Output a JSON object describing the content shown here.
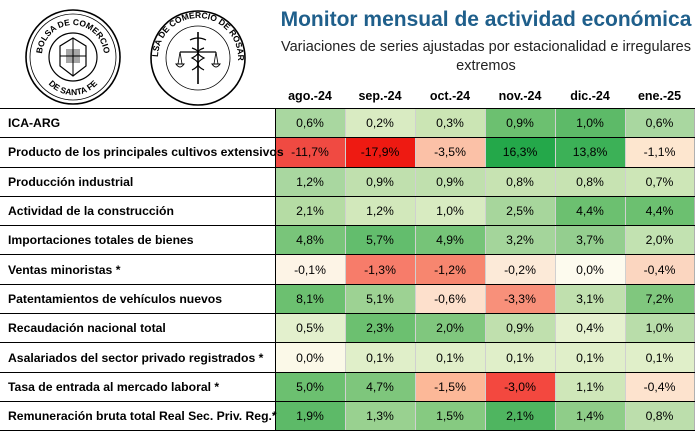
{
  "title": "Monitor mensual de actividad económica",
  "subtitle": "Variaciones de series ajustadas por estacionalidad e irregulares extremos",
  "logos": {
    "left_text_top": "BOLSA DE COMERCIO",
    "left_text_bottom": "DE SANTA FE",
    "right_text": "BOLSA DE COMERCIO DE ROSARIO"
  },
  "months": [
    "ago.-24",
    "sep.-24",
    "oct.-24",
    "nov.-24",
    "dic.-24",
    "ene.-25"
  ],
  "rows": [
    {
      "label": "ICA-ARG",
      "values": [
        "0,6%",
        "0,2%",
        "0,3%",
        "0,9%",
        "1,0%",
        "0,6%"
      ],
      "colors": [
        "#a9d7a0",
        "#d9ebc2",
        "#cbe5b4",
        "#6cc070",
        "#5dba68",
        "#a9d7a0"
      ]
    },
    {
      "label": "Producto de los principales cultivos extensivos",
      "values": [
        "-11,7%",
        "-17,9%",
        "-3,5%",
        "16,3%",
        "13,8%",
        "-1,1%"
      ],
      "colors": [
        "#f04a42",
        "#ee1a12",
        "#fbc1a7",
        "#24a84a",
        "#3cb157",
        "#fde6cf"
      ]
    },
    {
      "label": "Producción industrial",
      "values": [
        "1,2%",
        "0,9%",
        "0,9%",
        "0,8%",
        "0,8%",
        "0,7%"
      ],
      "colors": [
        "#a9d7a0",
        "#c0e0ae",
        "#c0e0ae",
        "#c7e3b2",
        "#c7e3b2",
        "#cde6b7"
      ]
    },
    {
      "label": "Actividad de la construcción",
      "values": [
        "2,1%",
        "1,2%",
        "1,0%",
        "2,5%",
        "4,4%",
        "4,4%"
      ],
      "colors": [
        "#b5dca4",
        "#d2e8bb",
        "#d8ebc1",
        "#a7d69c",
        "#6cc070",
        "#6cc070"
      ]
    },
    {
      "label": "Importaciones totales de bienes",
      "values": [
        "4,8%",
        "5,7%",
        "4,9%",
        "3,2%",
        "3,7%",
        "2,0%"
      ],
      "colors": [
        "#79c57a",
        "#63bd6d",
        "#76c478",
        "#a4d59b",
        "#94ce8f",
        "#c2e2b1"
      ]
    },
    {
      "label": "Ventas minoristas *",
      "values": [
        "-0,1%",
        "-1,3%",
        "-1,2%",
        "-0,2%",
        "0,0%",
        "-0,4%"
      ],
      "colors": [
        "#fdf4e6",
        "#f77c6a",
        "#f7866f",
        "#fcead8",
        "#fdfbee",
        "#fbd6c0"
      ]
    },
    {
      "label": "Patentamientos de vehículos nuevos",
      "values": [
        "8,1%",
        "5,1%",
        "-0,6%",
        "-3,3%",
        "3,1%",
        "7,2%"
      ],
      "colors": [
        "#6cc070",
        "#9dd293",
        "#fde0cc",
        "#f8907a",
        "#c0e0ae",
        "#80c77e"
      ]
    },
    {
      "label": "Recaudación nacional total",
      "values": [
        "0,5%",
        "2,3%",
        "2,0%",
        "0,9%",
        "0,4%",
        "1,0%"
      ],
      "colors": [
        "#e3f0cd",
        "#6cc070",
        "#80c77e",
        "#c0e0ae",
        "#e5f1cf",
        "#b9ddaa"
      ]
    },
    {
      "label": "Asalariados del sector privado registrados *",
      "values": [
        "0,0%",
        "0,1%",
        "0,1%",
        "0,1%",
        "0,1%",
        "0,1%"
      ],
      "colors": [
        "#fbf9e8",
        "#e0efc9",
        "#e0efc9",
        "#e0efc9",
        "#e0efc9",
        "#e0efc9"
      ]
    },
    {
      "label": "Tasa de entrada al mercado laboral *",
      "values": [
        "5,0%",
        "4,7%",
        "-1,5%",
        "-3,0%",
        "1,1%",
        "-0,4%"
      ],
      "colors": [
        "#6cc070",
        "#7ec67c",
        "#fcb898",
        "#f3483f",
        "#cfe7b9",
        "#fde3ce"
      ]
    },
    {
      "label": "Remuneración bruta total Real Sec. Priv. Reg.*",
      "values": [
        "1,9%",
        "1,3%",
        "1,5%",
        "2,1%",
        "1,4%",
        "0,8%"
      ],
      "colors": [
        "#5dba68",
        "#99d190",
        "#86ca81",
        "#4fb560",
        "#8fcd89",
        "#bcdeac"
      ]
    }
  ]
}
